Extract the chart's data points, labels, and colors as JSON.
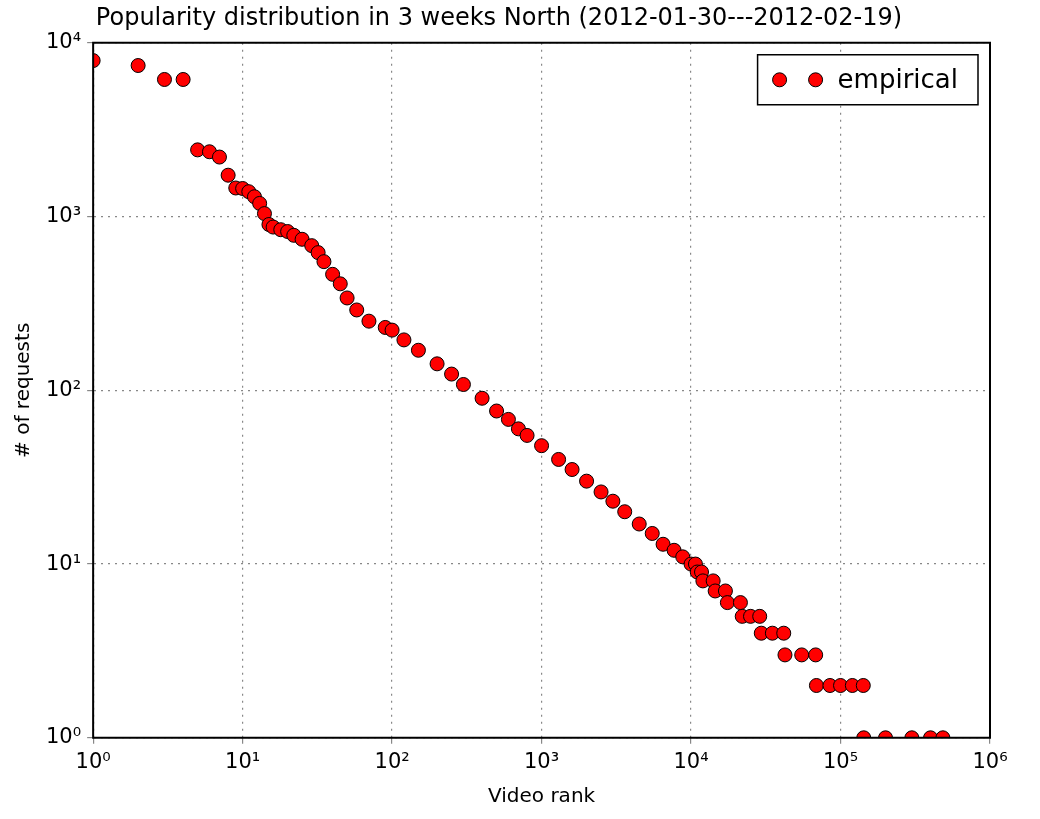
{
  "chart_data": {
    "type": "scatter",
    "title": "Popularity distribution in 3 weeks North (2012-01-30---2012-02-19)",
    "xlabel": "Video rank",
    "ylabel": "# of requests",
    "log": "xy",
    "grid": true,
    "legend": "top right",
    "marker": "circle",
    "xlim": [
      1,
      1000000
    ],
    "ylim": [
      1,
      10000
    ],
    "xticks": [
      {
        "value": 1,
        "label": "10⁰"
      },
      {
        "value": 10,
        "label": "10¹"
      },
      {
        "value": 100,
        "label": "10²"
      },
      {
        "value": 1000,
        "label": "10³"
      },
      {
        "value": 10000,
        "label": "10⁴"
      },
      {
        "value": 100000,
        "label": "10⁵"
      },
      {
        "value": 1000000,
        "label": "10⁶"
      }
    ],
    "yticks": [
      {
        "value": 1,
        "label": "10⁰"
      },
      {
        "value": 10,
        "label": "10¹"
      },
      {
        "value": 100,
        "label": "10²"
      },
      {
        "value": 1000,
        "label": "10³"
      },
      {
        "value": 10000,
        "label": "10⁴"
      }
    ],
    "series": [
      {
        "name": "empirical",
        "color": "#ff0000",
        "x": [
          1,
          2,
          3,
          4,
          5,
          6,
          7,
          8,
          9,
          10,
          11,
          12,
          13,
          14,
          15,
          16,
          18,
          20,
          22,
          25,
          29,
          32,
          35,
          40,
          45,
          50,
          58,
          70,
          90,
          100,
          120,
          150,
          200,
          250,
          300,
          400,
          500,
          600,
          700,
          800,
          1000,
          1300,
          1600,
          2000,
          2500,
          3000,
          3600,
          4500,
          5500,
          6500,
          7700,
          8800,
          10000,
          10700,
          11000,
          11750,
          12000,
          14060,
          14500,
          16980,
          17500,
          21400,
          22000,
          25000,
          28800,
          29500,
          35000,
          41700,
          42500,
          55000,
          68200,
          69000,
          85000,
          100000,
          120000,
          142000,
          143000,
          200000,
          300000,
          400000,
          484000
        ],
        "values": [
          7900,
          7400,
          6150,
          6150,
          2420,
          2360,
          2200,
          1730,
          1460,
          1450,
          1390,
          1300,
          1190,
          1040,
          900,
          870,
          840,
          820,
          780,
          740,
          680,
          620,
          550,
          465,
          410,
          340,
          290,
          250,
          230,
          222,
          195,
          170,
          142,
          124,
          108,
          90,
          76,
          68,
          60,
          55,
          48,
          40,
          35,
          30,
          26,
          23,
          20,
          17,
          15,
          13,
          12,
          11,
          10,
          10,
          9,
          9,
          8,
          8,
          7,
          7,
          6,
          6,
          5,
          5,
          5,
          4,
          4,
          4,
          3,
          3,
          3,
          2,
          2,
          2,
          2,
          2,
          1,
          1,
          1,
          1,
          1
        ]
      }
    ]
  }
}
